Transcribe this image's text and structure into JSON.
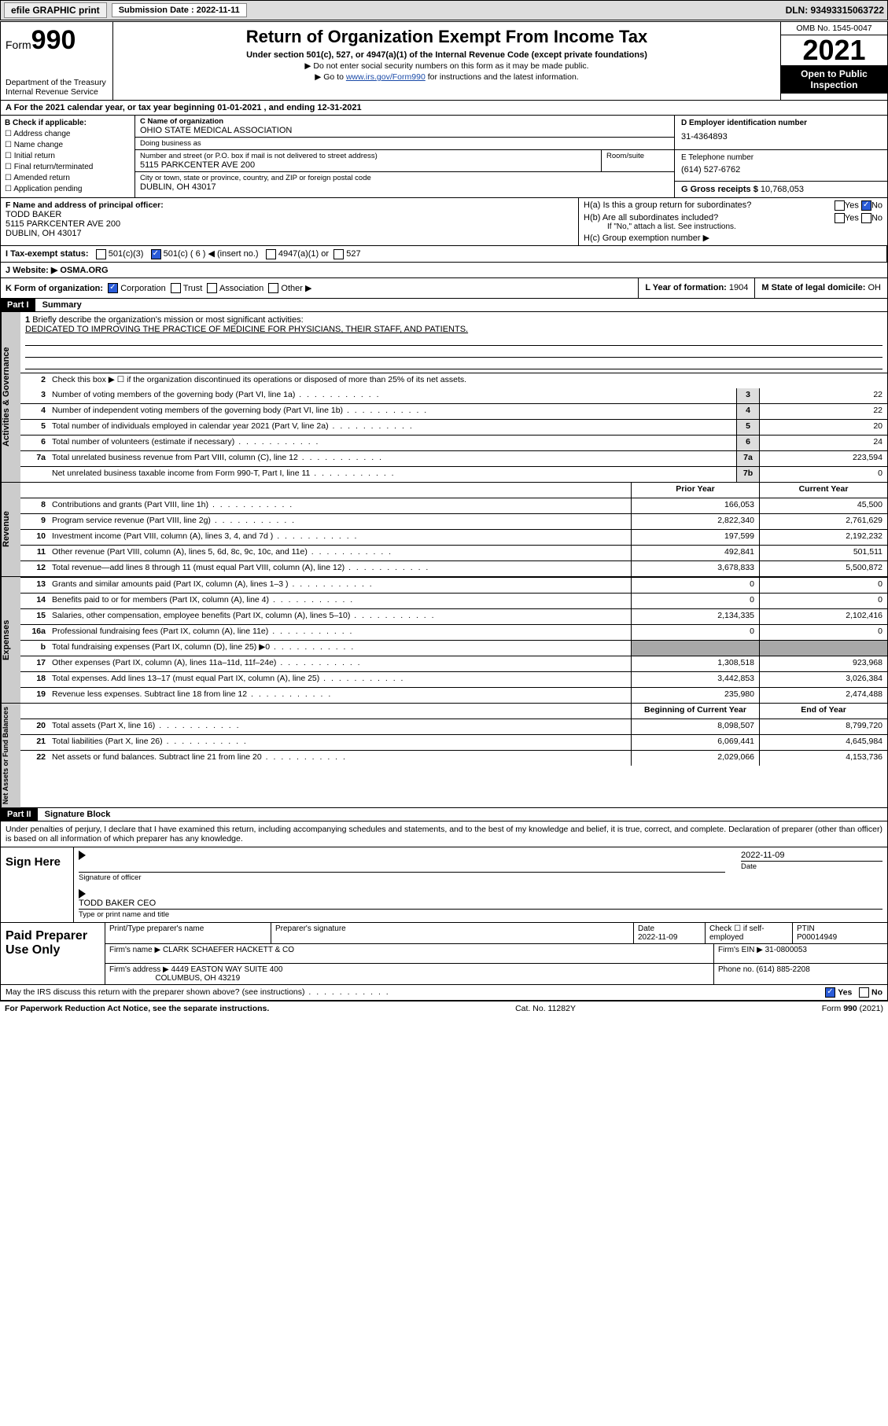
{
  "colors": {
    "topbar_bg": "#dddddd",
    "check_blue": "#2a5bd7",
    "black": "#000000",
    "link": "#1a4aa8",
    "shade": "#a8a8a8",
    "vtab_bg": "#cccccc"
  },
  "topbar": {
    "efile": "efile GRAPHIC print",
    "sub_label": "Submission Date : 2022-11-11",
    "dln": "DLN: 93493315063722"
  },
  "header": {
    "form_small": "Form",
    "form_big": "990",
    "dept1": "Department of the Treasury",
    "dept2": "Internal Revenue Service",
    "title": "Return of Organization Exempt From Income Tax",
    "sub": "Under section 501(c), 527, or 4947(a)(1) of the Internal Revenue Code (except private foundations)",
    "note1": "▶ Do not enter social security numbers on this form as it may be made public.",
    "note2_pre": "▶ Go to ",
    "note2_link": "www.irs.gov/Form990",
    "note2_post": " for instructions and the latest information.",
    "omb": "OMB No. 1545-0047",
    "year": "2021",
    "open1": "Open to Public",
    "open2": "Inspection"
  },
  "lineA": "A For the 2021 calendar year, or tax year beginning 01-01-2021   , and ending 12-31-2021",
  "boxB": {
    "label": "B Check if applicable:",
    "opts": [
      "Address change",
      "Name change",
      "Initial return",
      "Final return/terminated",
      "Amended return",
      "Application pending"
    ]
  },
  "boxC": {
    "name_label": "C Name of organization",
    "name": "OHIO STATE MEDICAL ASSOCIATION",
    "dba_label": "Doing business as",
    "dba": "",
    "street_label": "Number and street (or P.O. box if mail is not delivered to street address)",
    "room_label": "Room/suite",
    "street": "5115 PARKCENTER AVE 200",
    "city_label": "City or town, state or province, country, and ZIP or foreign postal code",
    "city": "DUBLIN, OH  43017"
  },
  "boxD": {
    "label": "D Employer identification number",
    "val": "31-4364893"
  },
  "boxE": {
    "label": "E Telephone number",
    "val": "(614) 527-6762"
  },
  "boxG": {
    "label": "G Gross receipts $",
    "val": "10,768,053"
  },
  "boxF": {
    "label": "F Name and address of principal officer:",
    "name": "TODD BAKER",
    "addr1": "5115 PARKCENTER AVE 200",
    "addr2": "DUBLIN, OH  43017"
  },
  "boxH": {
    "a": "H(a)  Is this a group return for subordinates?",
    "a_yes": "Yes",
    "a_no": "No",
    "a_checked": "no",
    "b": "H(b)  Are all subordinates included?",
    "b_yes": "Yes",
    "b_no": "No",
    "b_note": "If \"No,\" attach a list. See instructions.",
    "c": "H(c)  Group exemption number ▶"
  },
  "boxI": {
    "label": "I   Tax-exempt status:",
    "opt1": "501(c)(3)",
    "opt2": "501(c) ( 6 ) ◀ (insert no.)",
    "opt2_checked": true,
    "opt3": "4947(a)(1) or",
    "opt4": "527"
  },
  "boxJ": {
    "label": "J   Website: ▶",
    "val": "OSMA.ORG"
  },
  "boxK": {
    "label": "K Form of organization:",
    "corp": "Corporation",
    "corp_checked": true,
    "trust": "Trust",
    "assoc": "Association",
    "other": "Other ▶"
  },
  "boxL": {
    "label": "L Year of formation:",
    "val": "1904"
  },
  "boxM": {
    "label": "M State of legal domicile:",
    "val": "OH"
  },
  "part1": {
    "label": "Part I",
    "title": "Summary",
    "line1_label": "1",
    "line1_txt": "Briefly describe the organization's mission or most significant activities:",
    "mission": "DEDICATED TO IMPROVING THE PRACTICE OF MEDICINE FOR PHYSICIANS, THEIR STAFF, AND PATIENTS.",
    "line2_label": "2",
    "line2_txt": "Check this box ▶ ☐  if the organization discontinued its operations or disposed of more than 25% of its net assets."
  },
  "vtabs": {
    "gov": "Activities & Governance",
    "rev": "Revenue",
    "exp": "Expenses",
    "net": "Net Assets or Fund Balances"
  },
  "gov_lines": [
    {
      "n": "3",
      "t": "Number of voting members of the governing body (Part VI, line 1a)",
      "box": "3",
      "cur": "22"
    },
    {
      "n": "4",
      "t": "Number of independent voting members of the governing body (Part VI, line 1b)",
      "box": "4",
      "cur": "22"
    },
    {
      "n": "5",
      "t": "Total number of individuals employed in calendar year 2021 (Part V, line 2a)",
      "box": "5",
      "cur": "20"
    },
    {
      "n": "6",
      "t": "Total number of volunteers (estimate if necessary)",
      "box": "6",
      "cur": "24"
    },
    {
      "n": "7a",
      "t": "Total unrelated business revenue from Part VIII, column (C), line 12",
      "box": "7a",
      "cur": "223,594"
    },
    {
      "n": "",
      "t": "Net unrelated business taxable income from Form 990-T, Part I, line 11",
      "box": "7b",
      "cur": "0"
    }
  ],
  "col_hdr": {
    "prior": "Prior Year",
    "current": "Current Year"
  },
  "rev_lines": [
    {
      "n": "8",
      "t": "Contributions and grants (Part VIII, line 1h)",
      "p": "166,053",
      "c": "45,500"
    },
    {
      "n": "9",
      "t": "Program service revenue (Part VIII, line 2g)",
      "p": "2,822,340",
      "c": "2,761,629"
    },
    {
      "n": "10",
      "t": "Investment income (Part VIII, column (A), lines 3, 4, and 7d )",
      "p": "197,599",
      "c": "2,192,232"
    },
    {
      "n": "11",
      "t": "Other revenue (Part VIII, column (A), lines 5, 6d, 8c, 9c, 10c, and 11e)",
      "p": "492,841",
      "c": "501,511"
    },
    {
      "n": "12",
      "t": "Total revenue—add lines 8 through 11 (must equal Part VIII, column (A), line 12)",
      "p": "3,678,833",
      "c": "5,500,872"
    }
  ],
  "exp_lines": [
    {
      "n": "13",
      "t": "Grants and similar amounts paid (Part IX, column (A), lines 1–3 )",
      "p": "0",
      "c": "0"
    },
    {
      "n": "14",
      "t": "Benefits paid to or for members (Part IX, column (A), line 4)",
      "p": "0",
      "c": "0"
    },
    {
      "n": "15",
      "t": "Salaries, other compensation, employee benefits (Part IX, column (A), lines 5–10)",
      "p": "2,134,335",
      "c": "2,102,416"
    },
    {
      "n": "16a",
      "t": "Professional fundraising fees (Part IX, column (A), line 11e)",
      "p": "0",
      "c": "0"
    },
    {
      "n": "b",
      "t": "Total fundraising expenses (Part IX, column (D), line 25) ▶0",
      "p": "",
      "c": "",
      "shade": true
    },
    {
      "n": "17",
      "t": "Other expenses (Part IX, column (A), lines 11a–11d, 11f–24e)",
      "p": "1,308,518",
      "c": "923,968"
    },
    {
      "n": "18",
      "t": "Total expenses. Add lines 13–17 (must equal Part IX, column (A), line 25)",
      "p": "3,442,853",
      "c": "3,026,384"
    },
    {
      "n": "19",
      "t": "Revenue less expenses. Subtract line 18 from line 12",
      "p": "235,980",
      "c": "2,474,488"
    }
  ],
  "net_hdr": {
    "begin": "Beginning of Current Year",
    "end": "End of Year"
  },
  "net_lines": [
    {
      "n": "20",
      "t": "Total assets (Part X, line 16)",
      "p": "8,098,507",
      "c": "8,799,720"
    },
    {
      "n": "21",
      "t": "Total liabilities (Part X, line 26)",
      "p": "6,069,441",
      "c": "4,645,984"
    },
    {
      "n": "22",
      "t": "Net assets or fund balances. Subtract line 21 from line 20",
      "p": "2,029,066",
      "c": "4,153,736"
    }
  ],
  "part2": {
    "label": "Part II",
    "title": "Signature Block",
    "intro": "Under penalties of perjury, I declare that I have examined this return, including accompanying schedules and statements, and to the best of my knowledge and belief, it is true, correct, and complete. Declaration of preparer (other than officer) is based on all information of which preparer has any knowledge."
  },
  "sign": {
    "label": "Sign Here",
    "sig_officer": "Signature of officer",
    "date_label": "Date",
    "date": "2022-11-09",
    "name": "TODD BAKER CEO",
    "name_label": "Type or print name and title"
  },
  "paid": {
    "label": "Paid Preparer Use Only",
    "prep_name_label": "Print/Type preparer's name",
    "prep_name": "",
    "prep_sig_label": "Preparer's signature",
    "date_label": "Date",
    "date": "2022-11-09",
    "check_label": "Check ☐ if self-employed",
    "ptin_label": "PTIN",
    "ptin": "P00014949",
    "firm_name_label": "Firm's name    ▶",
    "firm_name": "CLARK SCHAEFER HACKETT & CO",
    "firm_ein_label": "Firm's EIN ▶",
    "firm_ein": "31-0800053",
    "firm_addr_label": "Firm's address ▶",
    "firm_addr1": "4449 EASTON WAY SUITE 400",
    "firm_addr2": "COLUMBUS, OH  43219",
    "phone_label": "Phone no.",
    "phone": "(614) 885-2208"
  },
  "footer": {
    "discuss": "May the IRS discuss this return with the preparer shown above? (see instructions)",
    "yes": "Yes",
    "no": "No",
    "yes_checked": true,
    "pra": "For Paperwork Reduction Act Notice, see the separate instructions.",
    "cat": "Cat. No. 11282Y",
    "form": "Form 990 (2021)"
  }
}
